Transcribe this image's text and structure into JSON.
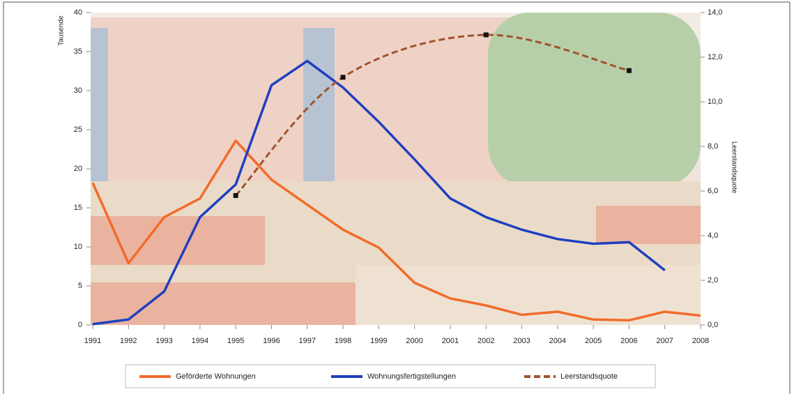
{
  "chart_data": {
    "type": "line",
    "x": [
      1991,
      1992,
      1993,
      1994,
      1995,
      1996,
      1997,
      1998,
      1999,
      2000,
      2001,
      2002,
      2003,
      2004,
      2005,
      2006,
      2007,
      2008
    ],
    "xlim": [
      1991,
      2008
    ],
    "xticks": [
      1991,
      1992,
      1993,
      1994,
      1995,
      1996,
      1997,
      1998,
      1999,
      2000,
      2001,
      2002,
      2003,
      2004,
      2005,
      2006,
      2007,
      2008
    ],
    "ylabel": "Tausende",
    "ylim": [
      0,
      40
    ],
    "yticks": [
      0,
      5,
      10,
      15,
      20,
      25,
      30,
      35,
      40
    ],
    "y2label": "Leerstandsquote",
    "y2lim": [
      0,
      14
    ],
    "y2ticks": [
      {
        "value": 0,
        "label": "0,0"
      },
      {
        "value": 2,
        "label": "2,0"
      },
      {
        "value": 4,
        "label": "4,0"
      },
      {
        "value": 6,
        "label": "6,0"
      },
      {
        "value": 8,
        "label": "8,0"
      },
      {
        "value": 10,
        "label": "10,0"
      },
      {
        "value": 12,
        "label": "12,0"
      },
      {
        "value": 14,
        "label": "14,0"
      }
    ],
    "series": [
      {
        "name": "Geförderte Wohnungen",
        "color": "#f26b2a",
        "values": [
          18.2,
          7.9,
          13.8,
          16.2,
          23.6,
          18.6,
          15.4,
          12.2,
          9.9,
          5.4,
          3.4,
          2.5,
          1.3,
          1.7,
          0.7,
          0.6,
          1.7,
          1.2
        ]
      },
      {
        "name": "Wohnungsfertigstellungen",
        "color": "#1f3fbf",
        "values": [
          0.1,
          0.7,
          4.3,
          13.8,
          18.0,
          30.7,
          33.8,
          30.4,
          26.0,
          21.2,
          16.2,
          13.8,
          12.2,
          11.0,
          10.4,
          10.6,
          7.0,
          null
        ]
      },
      {
        "name": "Leerstandsquote",
        "color": "#a0522d",
        "axis": "y2",
        "dashed": true,
        "x": [
          1995,
          1998,
          2002,
          2006
        ],
        "values": [
          5.8,
          11.1,
          13.0,
          11.4
        ]
      }
    ]
  }
}
